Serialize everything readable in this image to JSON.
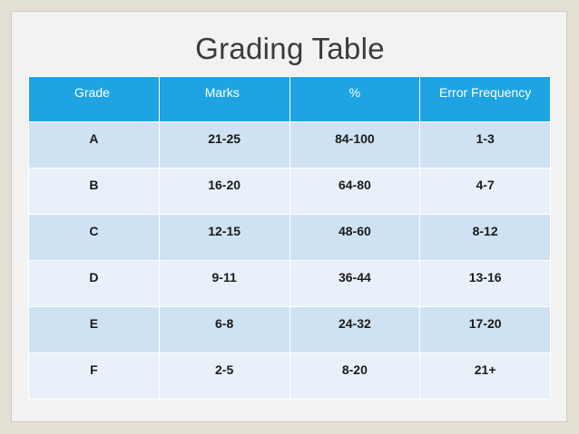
{
  "slide": {
    "title": "Grading Table"
  },
  "table": {
    "headers": [
      "Grade",
      "Marks",
      "%",
      "Error Frequency"
    ],
    "rows": [
      [
        "A",
        "21-25",
        "84-100",
        "1-3"
      ],
      [
        "B",
        "16-20",
        "64-80",
        "4-7"
      ],
      [
        "C",
        "12-15",
        "48-60",
        "8-12"
      ],
      [
        "D",
        "9-11",
        "36-44",
        "13-16"
      ],
      [
        "E",
        "6-8",
        "24-32",
        "17-20"
      ],
      [
        "F",
        "2-5",
        "8-20",
        "21+"
      ]
    ]
  },
  "colors": {
    "header_bg": "#1fa4e3",
    "row_odd_bg": "#cfe2f3",
    "row_even_bg": "#e8f1f9",
    "page_bg": "#e5e0d6"
  }
}
